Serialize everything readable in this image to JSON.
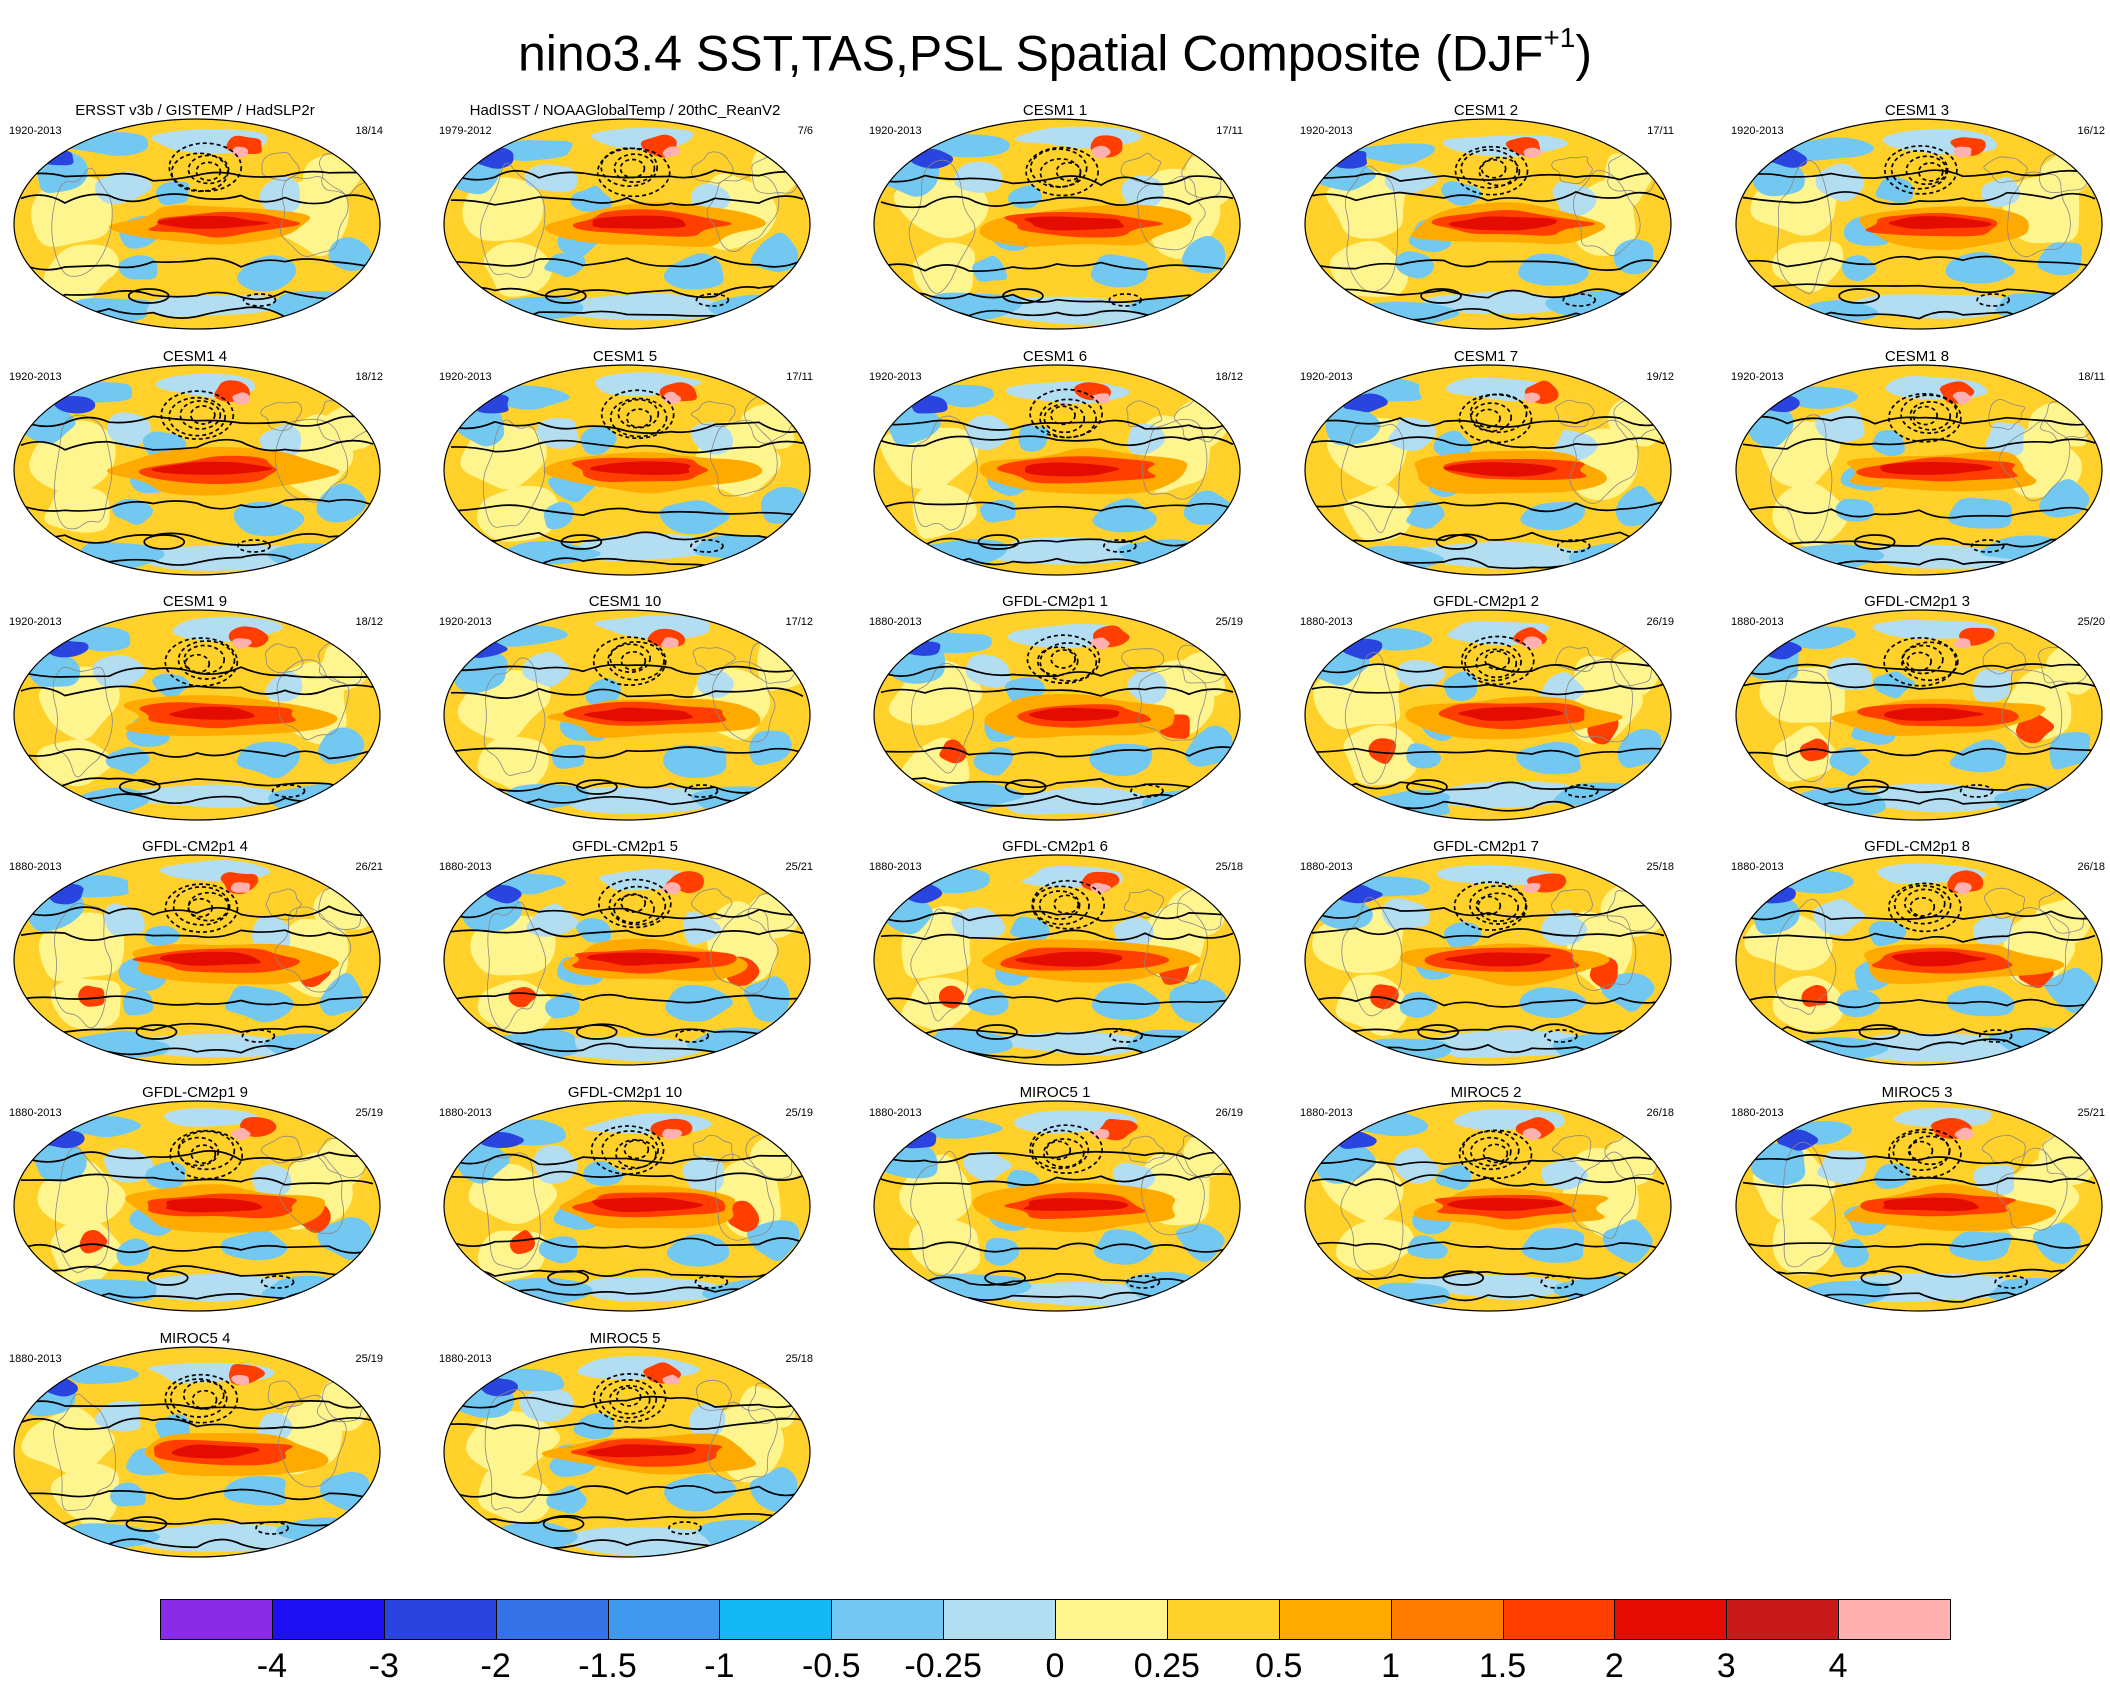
{
  "title": {
    "main": "nino3.4 SST,TAS,PSL Spatial Composite (DJF",
    "superscript": "+1",
    "close": ")"
  },
  "panels": [
    {
      "title": "ERSST v3b / GISTEMP / HadSLP2r",
      "years": "1920-2013",
      "count": "18/14"
    },
    {
      "title": "HadISST / NOAAGlobalTemp / 20thC_ReanV2",
      "years": "1979-2012",
      "count": "7/6"
    },
    {
      "title": "CESM1 1",
      "years": "1920-2013",
      "count": "17/11"
    },
    {
      "title": "CESM1 2",
      "years": "1920-2013",
      "count": "17/11"
    },
    {
      "title": "CESM1 3",
      "years": "1920-2013",
      "count": "16/12"
    },
    {
      "title": "CESM1 4",
      "years": "1920-2013",
      "count": "18/12"
    },
    {
      "title": "CESM1 5",
      "years": "1920-2013",
      "count": "17/11"
    },
    {
      "title": "CESM1 6",
      "years": "1920-2013",
      "count": "18/12"
    },
    {
      "title": "CESM1 7",
      "years": "1920-2013",
      "count": "19/12"
    },
    {
      "title": "CESM1 8",
      "years": "1920-2013",
      "count": "18/11"
    },
    {
      "title": "CESM1 9",
      "years": "1920-2013",
      "count": "18/12"
    },
    {
      "title": "CESM1 10",
      "years": "1920-2013",
      "count": "17/12"
    },
    {
      "title": "GFDL-CM2p1 1",
      "years": "1880-2013",
      "count": "25/19"
    },
    {
      "title": "GFDL-CM2p1 2",
      "years": "1880-2013",
      "count": "26/19"
    },
    {
      "title": "GFDL-CM2p1 3",
      "years": "1880-2013",
      "count": "25/20"
    },
    {
      "title": "GFDL-CM2p1 4",
      "years": "1880-2013",
      "count": "26/21"
    },
    {
      "title": "GFDL-CM2p1 5",
      "years": "1880-2013",
      "count": "25/21"
    },
    {
      "title": "GFDL-CM2p1 6",
      "years": "1880-2013",
      "count": "25/18"
    },
    {
      "title": "GFDL-CM2p1 7",
      "years": "1880-2013",
      "count": "25/18"
    },
    {
      "title": "GFDL-CM2p1 8",
      "years": "1880-2013",
      "count": "26/18"
    },
    {
      "title": "GFDL-CM2p1 9",
      "years": "1880-2013",
      "count": "25/19"
    },
    {
      "title": "GFDL-CM2p1 10",
      "years": "1880-2013",
      "count": "25/19"
    },
    {
      "title": "MIROC5 1",
      "years": "1880-2013",
      "count": "26/19"
    },
    {
      "title": "MIROC5 2",
      "years": "1880-2013",
      "count": "26/18"
    },
    {
      "title": "MIROC5 3",
      "years": "1880-2013",
      "count": "25/21"
    },
    {
      "title": "MIROC5 4",
      "years": "1880-2013",
      "count": "25/19"
    },
    {
      "title": "MIROC5 5",
      "years": "1880-2013",
      "count": "25/18"
    }
  ],
  "colorbar": {
    "colors": [
      "#8a2be8",
      "#1c10f2",
      "#2a44e0",
      "#3572e6",
      "#3f99ee",
      "#14b8f4",
      "#72c8f0",
      "#b3def2",
      "#fff58e",
      "#ffd12a",
      "#ffaa00",
      "#ff7a00",
      "#ff3e00",
      "#e40c00",
      "#c81a1a",
      "#ffb0b0"
    ],
    "labels": [
      "-4",
      "-3",
      "-2",
      "-1.5",
      "-1",
      "-0.5",
      "-0.25",
      "0",
      "0.25",
      "0.5",
      "1",
      "1.5",
      "2",
      "3",
      "4"
    ]
  },
  "map_colors": {
    "ocean_base": "#ffd12a",
    "land_base": "#fff58e",
    "enso_core": "#e40c00",
    "enso_mid": "#ff3e00",
    "enso_outer": "#ffaa00",
    "cool": "#72c8f0",
    "cold": "#3f99ee",
    "pale": "#b3def2",
    "cold_strong": "#2a44e0",
    "warm_high": "#ff3e00",
    "pink": "#ffb0b0"
  }
}
